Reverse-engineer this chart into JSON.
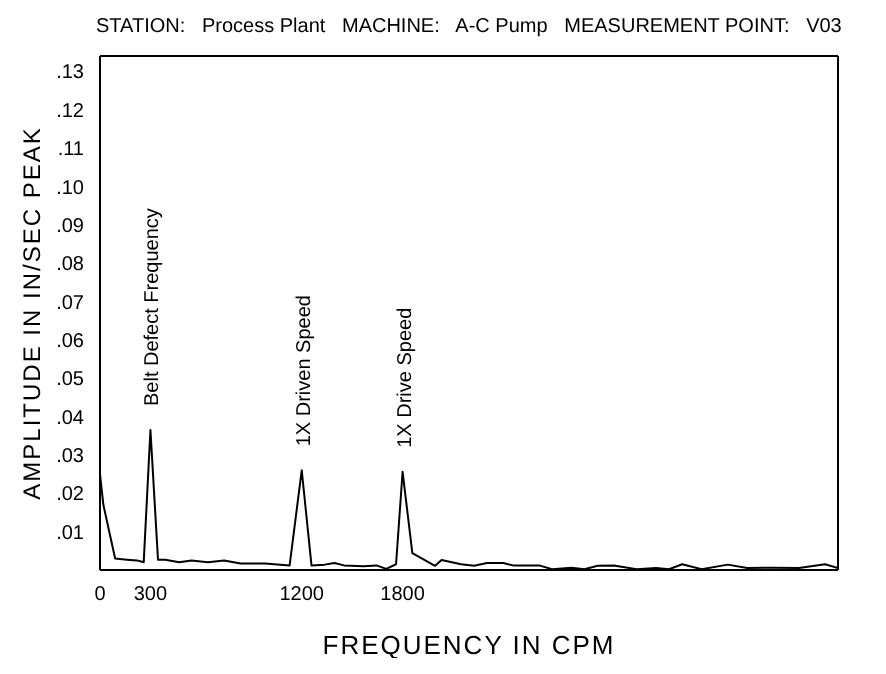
{
  "chart_data": {
    "type": "line",
    "title": "STATION:   Process Plant   MACHINE:   A-C Pump   MEASUREMENT POINT:   V03",
    "xlabel": "FREQUENCY IN CPM",
    "ylabel": "AMPLITUDE IN IN/SEC PEAK",
    "series": [
      {
        "color": "#000000",
        "x": [
          0,
          20,
          90,
          160,
          220,
          260,
          300,
          345,
          388,
          471,
          544,
          642,
          738,
          836,
          982,
          1128,
          1200,
          1258,
          1336,
          1394,
          1452,
          1568,
          1645,
          1703,
          1761,
          1800,
          1858,
          1993,
          2032,
          2148,
          2225,
          2302,
          2399,
          2457,
          2612,
          2689,
          2805,
          2882,
          2960,
          3056,
          3192,
          3308,
          3385,
          3463,
          3579,
          3734,
          3850,
          4004,
          4158,
          4313,
          4390
        ],
        "values": [
          0.025,
          0.017,
          0.003,
          0.0027,
          0.0025,
          0.002,
          0.0365,
          0.0027,
          0.0027,
          0.002,
          0.0025,
          0.002,
          0.0025,
          0.0017,
          0.0017,
          0.0012,
          0.026,
          0.0012,
          0.0014,
          0.0018,
          0.0012,
          0.001,
          0.0012,
          0.0003,
          0.0015,
          0.0256,
          0.0044,
          0.0011,
          0.0026,
          0.0015,
          0.0011,
          0.0018,
          0.0018,
          0.0012,
          0.0012,
          0.0002,
          0.0006,
          0.0002,
          0.0011,
          0.0012,
          0.0002,
          0.0005,
          0.0002,
          0.0015,
          0.0002,
          0.0014,
          0.0005,
          0.0006,
          0.0005,
          0.0015,
          0.0005
        ]
      }
    ],
    "xlim": [
      0,
      4390
    ],
    "xticks": [
      0,
      300,
      1200,
      1800
    ],
    "ylim": [
      0,
      0.134
    ],
    "yticks": [
      {
        "value": 0.01,
        "label": ".01"
      },
      {
        "value": 0.02,
        "label": ".02"
      },
      {
        "value": 0.03,
        "label": ".03"
      },
      {
        "value": 0.04,
        "label": ".04"
      },
      {
        "value": 0.05,
        "label": ".05"
      },
      {
        "value": 0.06,
        "label": ".06"
      },
      {
        "value": 0.07,
        "label": ".07"
      },
      {
        "value": 0.08,
        "label": ".08"
      },
      {
        "value": 0.09,
        "label": ".09"
      },
      {
        "value": 0.1,
        "label": ".10"
      },
      {
        "value": 0.11,
        "label": ".11"
      },
      {
        "value": 0.12,
        "label": ".12"
      },
      {
        "value": 0.13,
        "label": ".13"
      }
    ],
    "annotations": [
      {
        "text": "Belt Defect Frequency",
        "x": 300,
        "y": 0.0365
      },
      {
        "text": "1X Driven Speed",
        "x": 1200,
        "y": 0.026
      },
      {
        "text": "1X Drive Speed",
        "x": 1800,
        "y": 0.0256
      }
    ],
    "grid": false,
    "legend": false,
    "marker": "none",
    "line_style": "solid"
  }
}
